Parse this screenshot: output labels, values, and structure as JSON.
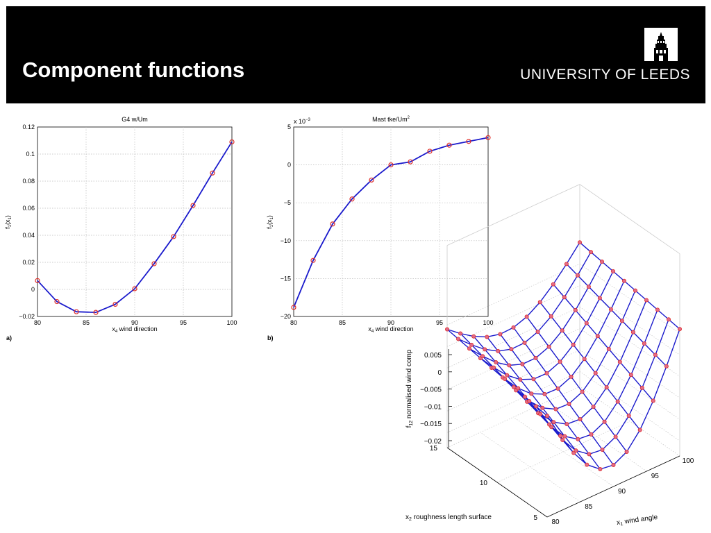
{
  "header": {
    "title": "Component functions",
    "logo_text": "UNIVERSITY OF LEEDS"
  },
  "colors": {
    "header_bg": "#000000",
    "line": "#1a1acc",
    "marker": "#e0302a",
    "grid": "#bbbbbb"
  },
  "panels": {
    "a": "a)",
    "b": "b)"
  },
  "chart_data": [
    {
      "type": "line",
      "title": "G4 w/Um",
      "xlabel": "x4 wind direction",
      "ylabel": "f1(x1)",
      "x": [
        80,
        82,
        84,
        86,
        88,
        90,
        92,
        94,
        96,
        98,
        100
      ],
      "values": [
        0.0065,
        -0.009,
        -0.0165,
        -0.017,
        -0.011,
        0.0005,
        0.019,
        0.039,
        0.062,
        0.086,
        0.109
      ],
      "xlim": [
        80,
        100
      ],
      "ylim": [
        -0.02,
        0.12
      ],
      "xticks": [
        "80",
        "85",
        "90",
        "95",
        "100"
      ],
      "yticks": [
        "−0.02",
        "0",
        "0.02",
        "0.04",
        "0.06",
        "0.08",
        "0.1",
        "0.12"
      ],
      "grid": true
    },
    {
      "type": "line",
      "title": "Mast tke/Um",
      "title_superscript": "2",
      "axis_multiplier": "x 10",
      "axis_multiplier_exp": "−3",
      "xlabel": "x4 wind direction",
      "ylabel": "f1(x1)",
      "x": [
        80,
        82,
        84,
        86,
        88,
        90,
        92,
        94,
        96,
        98,
        100
      ],
      "values": [
        -18.8,
        -12.6,
        -7.8,
        -4.5,
        -2.0,
        0.0,
        0.4,
        1.8,
        2.6,
        3.1,
        3.6
      ],
      "xlim": [
        80,
        100
      ],
      "ylim": [
        -20,
        5
      ],
      "xticks": [
        "80",
        "85",
        "90",
        "95",
        "100"
      ],
      "yticks": [
        "−20",
        "−15",
        "−10",
        "−5",
        "0",
        "5"
      ],
      "grid": true
    },
    {
      "type": "surface",
      "zlabel": "f12 normalised wind comp",
      "xlabel": "x1 wind angle",
      "ylabel": "x2 roughness length surface",
      "xticks": [
        "80",
        "85",
        "90",
        "95",
        "100"
      ],
      "yticks": [
        "5",
        "10",
        "15"
      ],
      "zticks": [
        "0.005",
        "0",
        "−0.005",
        "−0.01",
        "−0.015",
        "−0.02"
      ],
      "xlim": [
        80,
        100
      ],
      "ylim": [
        5,
        15
      ],
      "zlim": [
        -0.02,
        0.005
      ],
      "grid": true
    }
  ]
}
